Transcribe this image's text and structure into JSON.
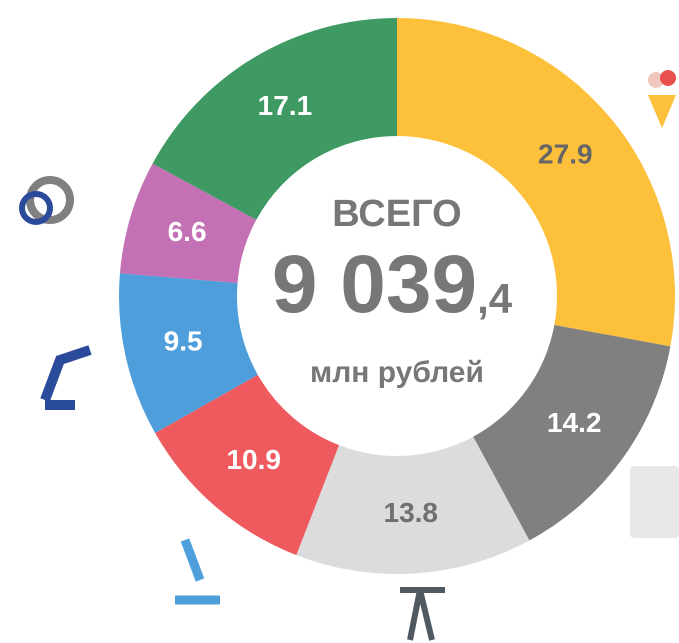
{
  "chart_data": {
    "type": "donut",
    "values": [
      27.9,
      14.2,
      13.8,
      10.9,
      9.5,
      6.6,
      17.1
    ],
    "colors": [
      "#fdc03b",
      "#808080",
      "#dcdcdc",
      "#ee5a5e",
      "#4d9edb",
      "#c370b5",
      "#3e9a62"
    ],
    "label_colors": [
      "#666666",
      "#ffffff",
      "#707070",
      "#ffffff",
      "#ffffff",
      "#ffffff",
      "#ffffff"
    ],
    "center": {
      "label": "ВСЕГО",
      "total": "9 039",
      "total_decimal": ",4",
      "unit": "млн рублей"
    }
  }
}
